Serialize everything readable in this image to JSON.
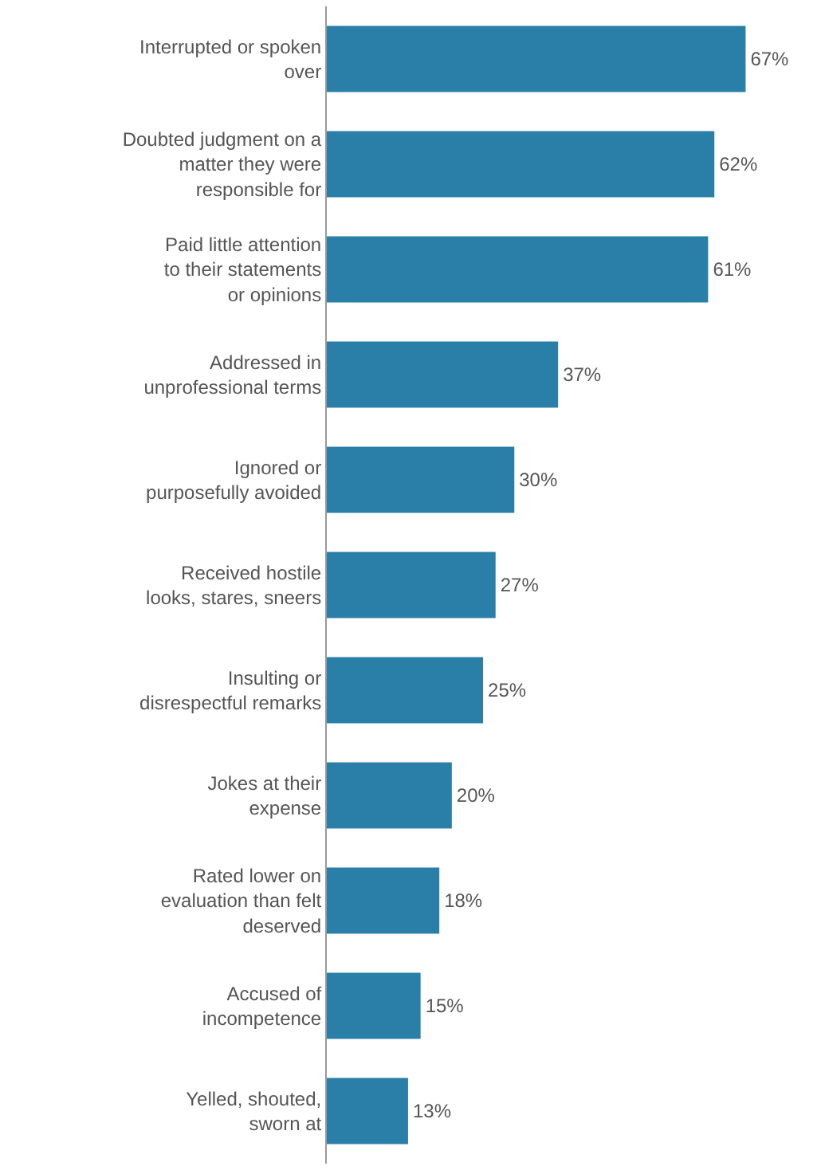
{
  "chart_data": {
    "type": "bar",
    "orientation": "horizontal",
    "color": "#2a7fa8",
    "categories": [
      "Interrupted or spoken over",
      "Doubted judgment on a matter they were responsible for",
      "Paid little attention to their statements or opinions",
      "Addressed in unprofessional terms",
      "Ignored or purposefully avoided",
      "Received hostile looks, stares, sneers",
      "Insulting or disrespectful remarks",
      "Jokes at their expense",
      "Rated lower on evaluation than felt deserved",
      "Accused of incompetence",
      "Yelled, shouted, sworn at"
    ],
    "values": [
      67,
      62,
      61,
      37,
      30,
      27,
      25,
      20,
      18,
      15,
      13
    ],
    "value_labels": [
      "67%",
      "62%",
      "61%",
      "37%",
      "30%",
      "27%",
      "25%",
      "20%",
      "18%",
      "15%",
      "13%"
    ]
  }
}
